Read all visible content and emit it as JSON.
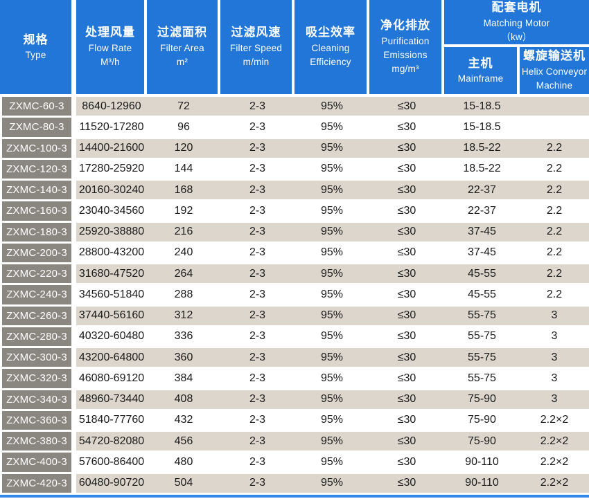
{
  "colors": {
    "blue": "#2176d8",
    "accent": "#3287e8",
    "gray": "#8a8680",
    "tan": "#dcd6cc",
    "rowwhite": "#ffffff",
    "dark": "#1a1a1a"
  },
  "header": {
    "type": {
      "zh": "规格",
      "en": "Type"
    },
    "flow": {
      "zh": "处理风量",
      "en": "Flow Rate",
      "unit": "M³/h"
    },
    "area": {
      "zh": "过滤面积",
      "en": "Filter Area",
      "unit": "m²"
    },
    "speed": {
      "zh": "过滤风速",
      "en": "Filter Speed",
      "unit": "m/min"
    },
    "eff": {
      "zh": "吸尘效率",
      "en": "Cleaning",
      "en2": "Efficiency"
    },
    "emis": {
      "zh": "净化排放",
      "en": "Purification",
      "en2": "Emissions",
      "unit": "mg/m³"
    },
    "motor": {
      "zh": "配套电机",
      "en": "Matching Motor",
      "unit": "（kw）"
    },
    "mainframe": {
      "zh": "主机",
      "en": "Mainframe"
    },
    "helix": {
      "zh": "螺旋输送机",
      "en": "Helix Conveyor",
      "en2": "Machine"
    }
  },
  "table": {
    "rows": [
      {
        "type": "ZXMC-60-3",
        "flow": "8640-12960",
        "area": "72",
        "speed": "2-3",
        "eff": "95%",
        "emis": "≤30",
        "main": "15-18.5",
        "helix": ""
      },
      {
        "type": "ZXMC-80-3",
        "flow": "11520-17280",
        "area": "96",
        "speed": "2-3",
        "eff": "95%",
        "emis": "≤30",
        "main": "15-18.5",
        "helix": ""
      },
      {
        "type": "ZXMC-100-3",
        "flow": "14400-21600",
        "area": "120",
        "speed": "2-3",
        "eff": "95%",
        "emis": "≤30",
        "main": "18.5-22",
        "helix": "2.2"
      },
      {
        "type": "ZXMC-120-3",
        "flow": "17280-25920",
        "area": "144",
        "speed": "2-3",
        "eff": "95%",
        "emis": "≤30",
        "main": "18.5-22",
        "helix": "2.2"
      },
      {
        "type": "ZXMC-140-3",
        "flow": "20160-30240",
        "area": "168",
        "speed": "2-3",
        "eff": "95%",
        "emis": "≤30",
        "main": "22-37",
        "helix": "2.2"
      },
      {
        "type": "ZXMC-160-3",
        "flow": "23040-34560",
        "area": "192",
        "speed": "2-3",
        "eff": "95%",
        "emis": "≤30",
        "main": "22-37",
        "helix": "2.2"
      },
      {
        "type": "ZXMC-180-3",
        "flow": "25920-38880",
        "area": "216",
        "speed": "2-3",
        "eff": "95%",
        "emis": "≤30",
        "main": "37-45",
        "helix": "2.2"
      },
      {
        "type": "ZXMC-200-3",
        "flow": "28800-43200",
        "area": "240",
        "speed": "2-3",
        "eff": "95%",
        "emis": "≤30",
        "main": "37-45",
        "helix": "2.2"
      },
      {
        "type": "ZXMC-220-3",
        "flow": "31680-47520",
        "area": "264",
        "speed": "2-3",
        "eff": "95%",
        "emis": "≤30",
        "main": "45-55",
        "helix": "2.2"
      },
      {
        "type": "ZXMC-240-3",
        "flow": "34560-51840",
        "area": "288",
        "speed": "2-3",
        "eff": "95%",
        "emis": "≤30",
        "main": "45-55",
        "helix": "2.2"
      },
      {
        "type": "ZXMC-260-3",
        "flow": "37440-56160",
        "area": "312",
        "speed": "2-3",
        "eff": "95%",
        "emis": "≤30",
        "main": "55-75",
        "helix": "3"
      },
      {
        "type": "ZXMC-280-3",
        "flow": "40320-60480",
        "area": "336",
        "speed": "2-3",
        "eff": "95%",
        "emis": "≤30",
        "main": "55-75",
        "helix": "3"
      },
      {
        "type": "ZXMC-300-3",
        "flow": "43200-64800",
        "area": "360",
        "speed": "2-3",
        "eff": "95%",
        "emis": "≤30",
        "main": "55-75",
        "helix": "3"
      },
      {
        "type": "ZXMC-320-3",
        "flow": "46080-69120",
        "area": "384",
        "speed": "2-3",
        "eff": "95%",
        "emis": "≤30",
        "main": "55-75",
        "helix": "3"
      },
      {
        "type": "ZXMC-340-3",
        "flow": "48960-73440",
        "area": "408",
        "speed": "2-3",
        "eff": "95%",
        "emis": "≤30",
        "main": "75-90",
        "helix": "3"
      },
      {
        "type": "ZXMC-360-3",
        "flow": "51840-77760",
        "area": "432",
        "speed": "2-3",
        "eff": "95%",
        "emis": "≤30",
        "main": "75-90",
        "helix": "2.2×2"
      },
      {
        "type": "ZXMC-380-3",
        "flow": "54720-82080",
        "area": "456",
        "speed": "2-3",
        "eff": "95%",
        "emis": "≤30",
        "main": "75-90",
        "helix": "2.2×2"
      },
      {
        "type": "ZXMC-400-3",
        "flow": "57600-86400",
        "area": "480",
        "speed": "2-3",
        "eff": "95%",
        "emis": "≤30",
        "main": "90-110",
        "helix": "2.2×2"
      },
      {
        "type": "ZXMC-420-3",
        "flow": "60480-90720",
        "area": "504",
        "speed": "2-3",
        "eff": "95%",
        "emis": "≤30",
        "main": "90-110",
        "helix": "2.2×2"
      }
    ]
  }
}
